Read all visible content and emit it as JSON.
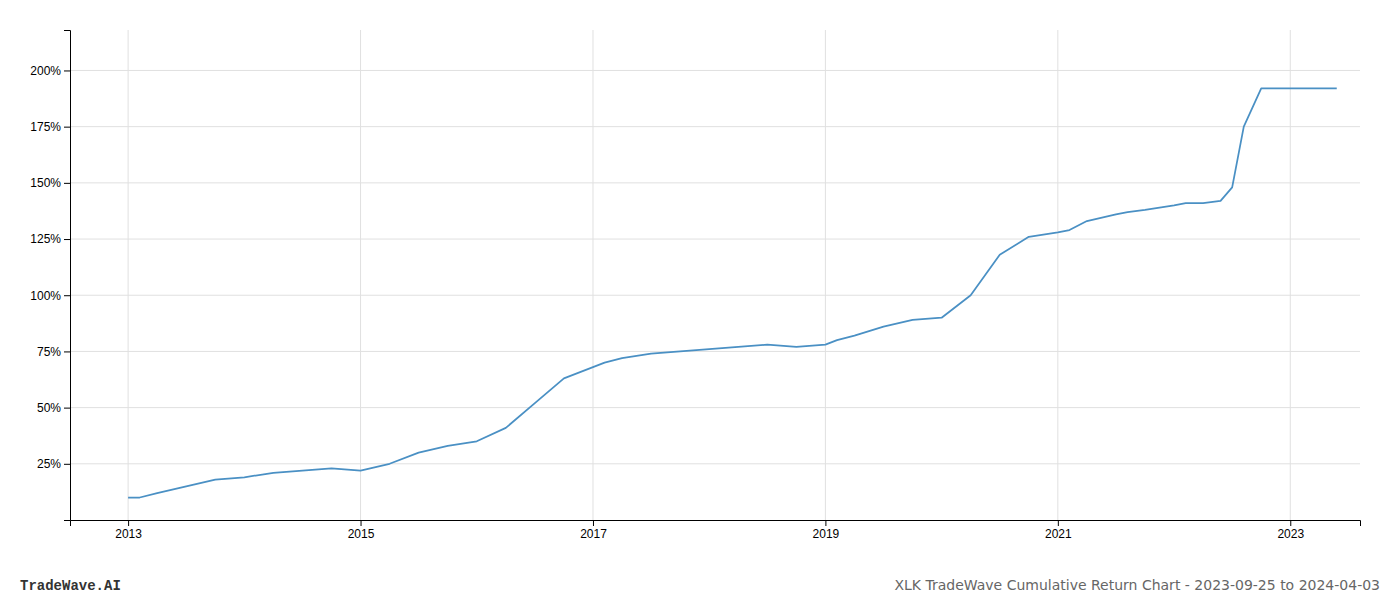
{
  "chart_data": {
    "type": "line",
    "title": "XLK TradeWave Cumulative Return Chart - 2023-09-25 to 2024-04-03",
    "annotations": [
      "TradeWave.AI"
    ],
    "color": "#4a90c4",
    "grid": true,
    "x": [
      2013.0,
      2013.1,
      2013.25,
      2013.5,
      2013.75,
      2014.0,
      2014.25,
      2014.5,
      2014.75,
      2015.0,
      2015.25,
      2015.5,
      2015.75,
      2016.0,
      2016.25,
      2016.5,
      2016.75,
      2017.0,
      2017.1,
      2017.25,
      2017.5,
      2017.75,
      2018.0,
      2018.25,
      2018.5,
      2018.75,
      2019.0,
      2019.1,
      2019.25,
      2019.5,
      2019.75,
      2020.0,
      2020.25,
      2020.5,
      2020.75,
      2021.0,
      2021.1,
      2021.25,
      2021.5,
      2021.6,
      2021.75,
      2022.0,
      2022.1,
      2022.25,
      2022.4,
      2022.5,
      2022.6,
      2022.75,
      2023.0,
      2023.25,
      2023.4
    ],
    "values": [
      10,
      10,
      12,
      15,
      18,
      19,
      21,
      22,
      23,
      22,
      25,
      30,
      33,
      35,
      41,
      52,
      63,
      68,
      70,
      72,
      74,
      75,
      76,
      77,
      78,
      77,
      78,
      80,
      82,
      86,
      89,
      90,
      100,
      118,
      126,
      128,
      129,
      133,
      136,
      137,
      138,
      140,
      141,
      141,
      142,
      148,
      175,
      192,
      192,
      192,
      192
    ],
    "xlim": [
      2012.5,
      2023.6
    ],
    "xticks": [
      2013,
      2015,
      2017,
      2019,
      2021,
      2023
    ],
    "ylim": [
      0,
      218
    ],
    "yticks": [
      {
        "value": 25,
        "label": "25%"
      },
      {
        "value": 50,
        "label": "50%"
      },
      {
        "value": 75,
        "label": "75%"
      },
      {
        "value": 100,
        "label": "100%"
      },
      {
        "value": 125,
        "label": "125%"
      },
      {
        "value": 150,
        "label": "150%"
      },
      {
        "value": 175,
        "label": "175%"
      },
      {
        "value": 200,
        "label": "200%"
      }
    ]
  }
}
